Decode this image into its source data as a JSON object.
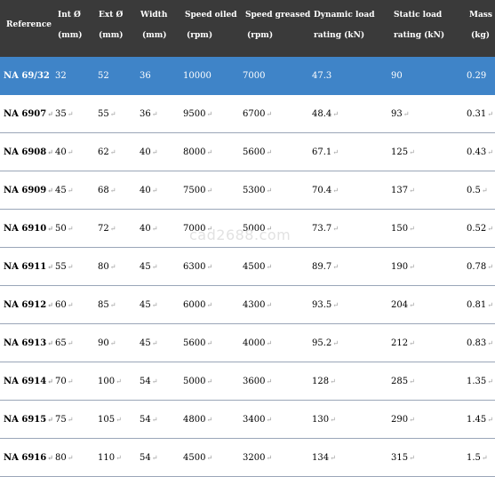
{
  "header": {
    "reference": "Reference",
    "int_line1": "Int Ø",
    "int_line2": "(mm)",
    "ext_line1": "Ext Ø",
    "ext_line2": "(mm)",
    "width_line1": "Width",
    "width_line2": "(mm)",
    "oiled_line1": "Speed oiled",
    "oiled_line2": "(rpm)",
    "greased_line1": "Speed greased",
    "greased_line2": "(rpm)",
    "dyn_line1": "Dynamic load",
    "dyn_line2": "rating (kN)",
    "stat_line1": "Static load",
    "stat_line2": "rating (kN)",
    "mass_line1": "Mass",
    "mass_line2": "(kg)"
  },
  "rows": [
    {
      "ref": "NA 69/32",
      "int": "32",
      "ext": "52",
      "width": "36",
      "oiled": "10000",
      "greased": "7000",
      "dyn": "47.3",
      "stat": "90",
      "mass": "0.29"
    },
    {
      "ref": "NA 6907",
      "int": "35",
      "ext": "55",
      "width": "36",
      "oiled": "9500",
      "greased": "6700",
      "dyn": "48.4",
      "stat": "93",
      "mass": "0.31"
    },
    {
      "ref": "NA 6908",
      "int": "40",
      "ext": "62",
      "width": "40",
      "oiled": "8000",
      "greased": "5600",
      "dyn": "67.1",
      "stat": "125",
      "mass": "0.43"
    },
    {
      "ref": "NA 6909",
      "int": "45",
      "ext": "68",
      "width": "40",
      "oiled": "7500",
      "greased": "5300",
      "dyn": "70.4",
      "stat": "137",
      "mass": "0.5"
    },
    {
      "ref": "NA 6910",
      "int": "50",
      "ext": "72",
      "width": "40",
      "oiled": "7000",
      "greased": "5000",
      "dyn": "73.7",
      "stat": "150",
      "mass": "0.52"
    },
    {
      "ref": "NA 6911",
      "int": "55",
      "ext": "80",
      "width": "45",
      "oiled": "6300",
      "greased": "4500",
      "dyn": "89.7",
      "stat": "190",
      "mass": "0.78"
    },
    {
      "ref": "NA 6912",
      "int": "60",
      "ext": "85",
      "width": "45",
      "oiled": "6000",
      "greased": "4300",
      "dyn": "93.5",
      "stat": "204",
      "mass": "0.81"
    },
    {
      "ref": "NA 6913",
      "int": "65",
      "ext": "90",
      "width": "45",
      "oiled": "5600",
      "greased": "4000",
      "dyn": "95.2",
      "stat": "212",
      "mass": "0.83"
    },
    {
      "ref": "NA 6914",
      "int": "70",
      "ext": "100",
      "width": "54",
      "oiled": "5000",
      "greased": "3600",
      "dyn": "128",
      "stat": "285",
      "mass": "1.35"
    },
    {
      "ref": "NA 6915",
      "int": "75",
      "ext": "105",
      "width": "54",
      "oiled": "4800",
      "greased": "3400",
      "dyn": "130",
      "stat": "290",
      "mass": "1.45"
    },
    {
      "ref": "NA 6916",
      "int": "80",
      "ext": "110",
      "width": "54",
      "oiled": "4500",
      "greased": "3200",
      "dyn": "134",
      "stat": "315",
      "mass": "1.5"
    }
  ],
  "watermark": "cad2688.com"
}
